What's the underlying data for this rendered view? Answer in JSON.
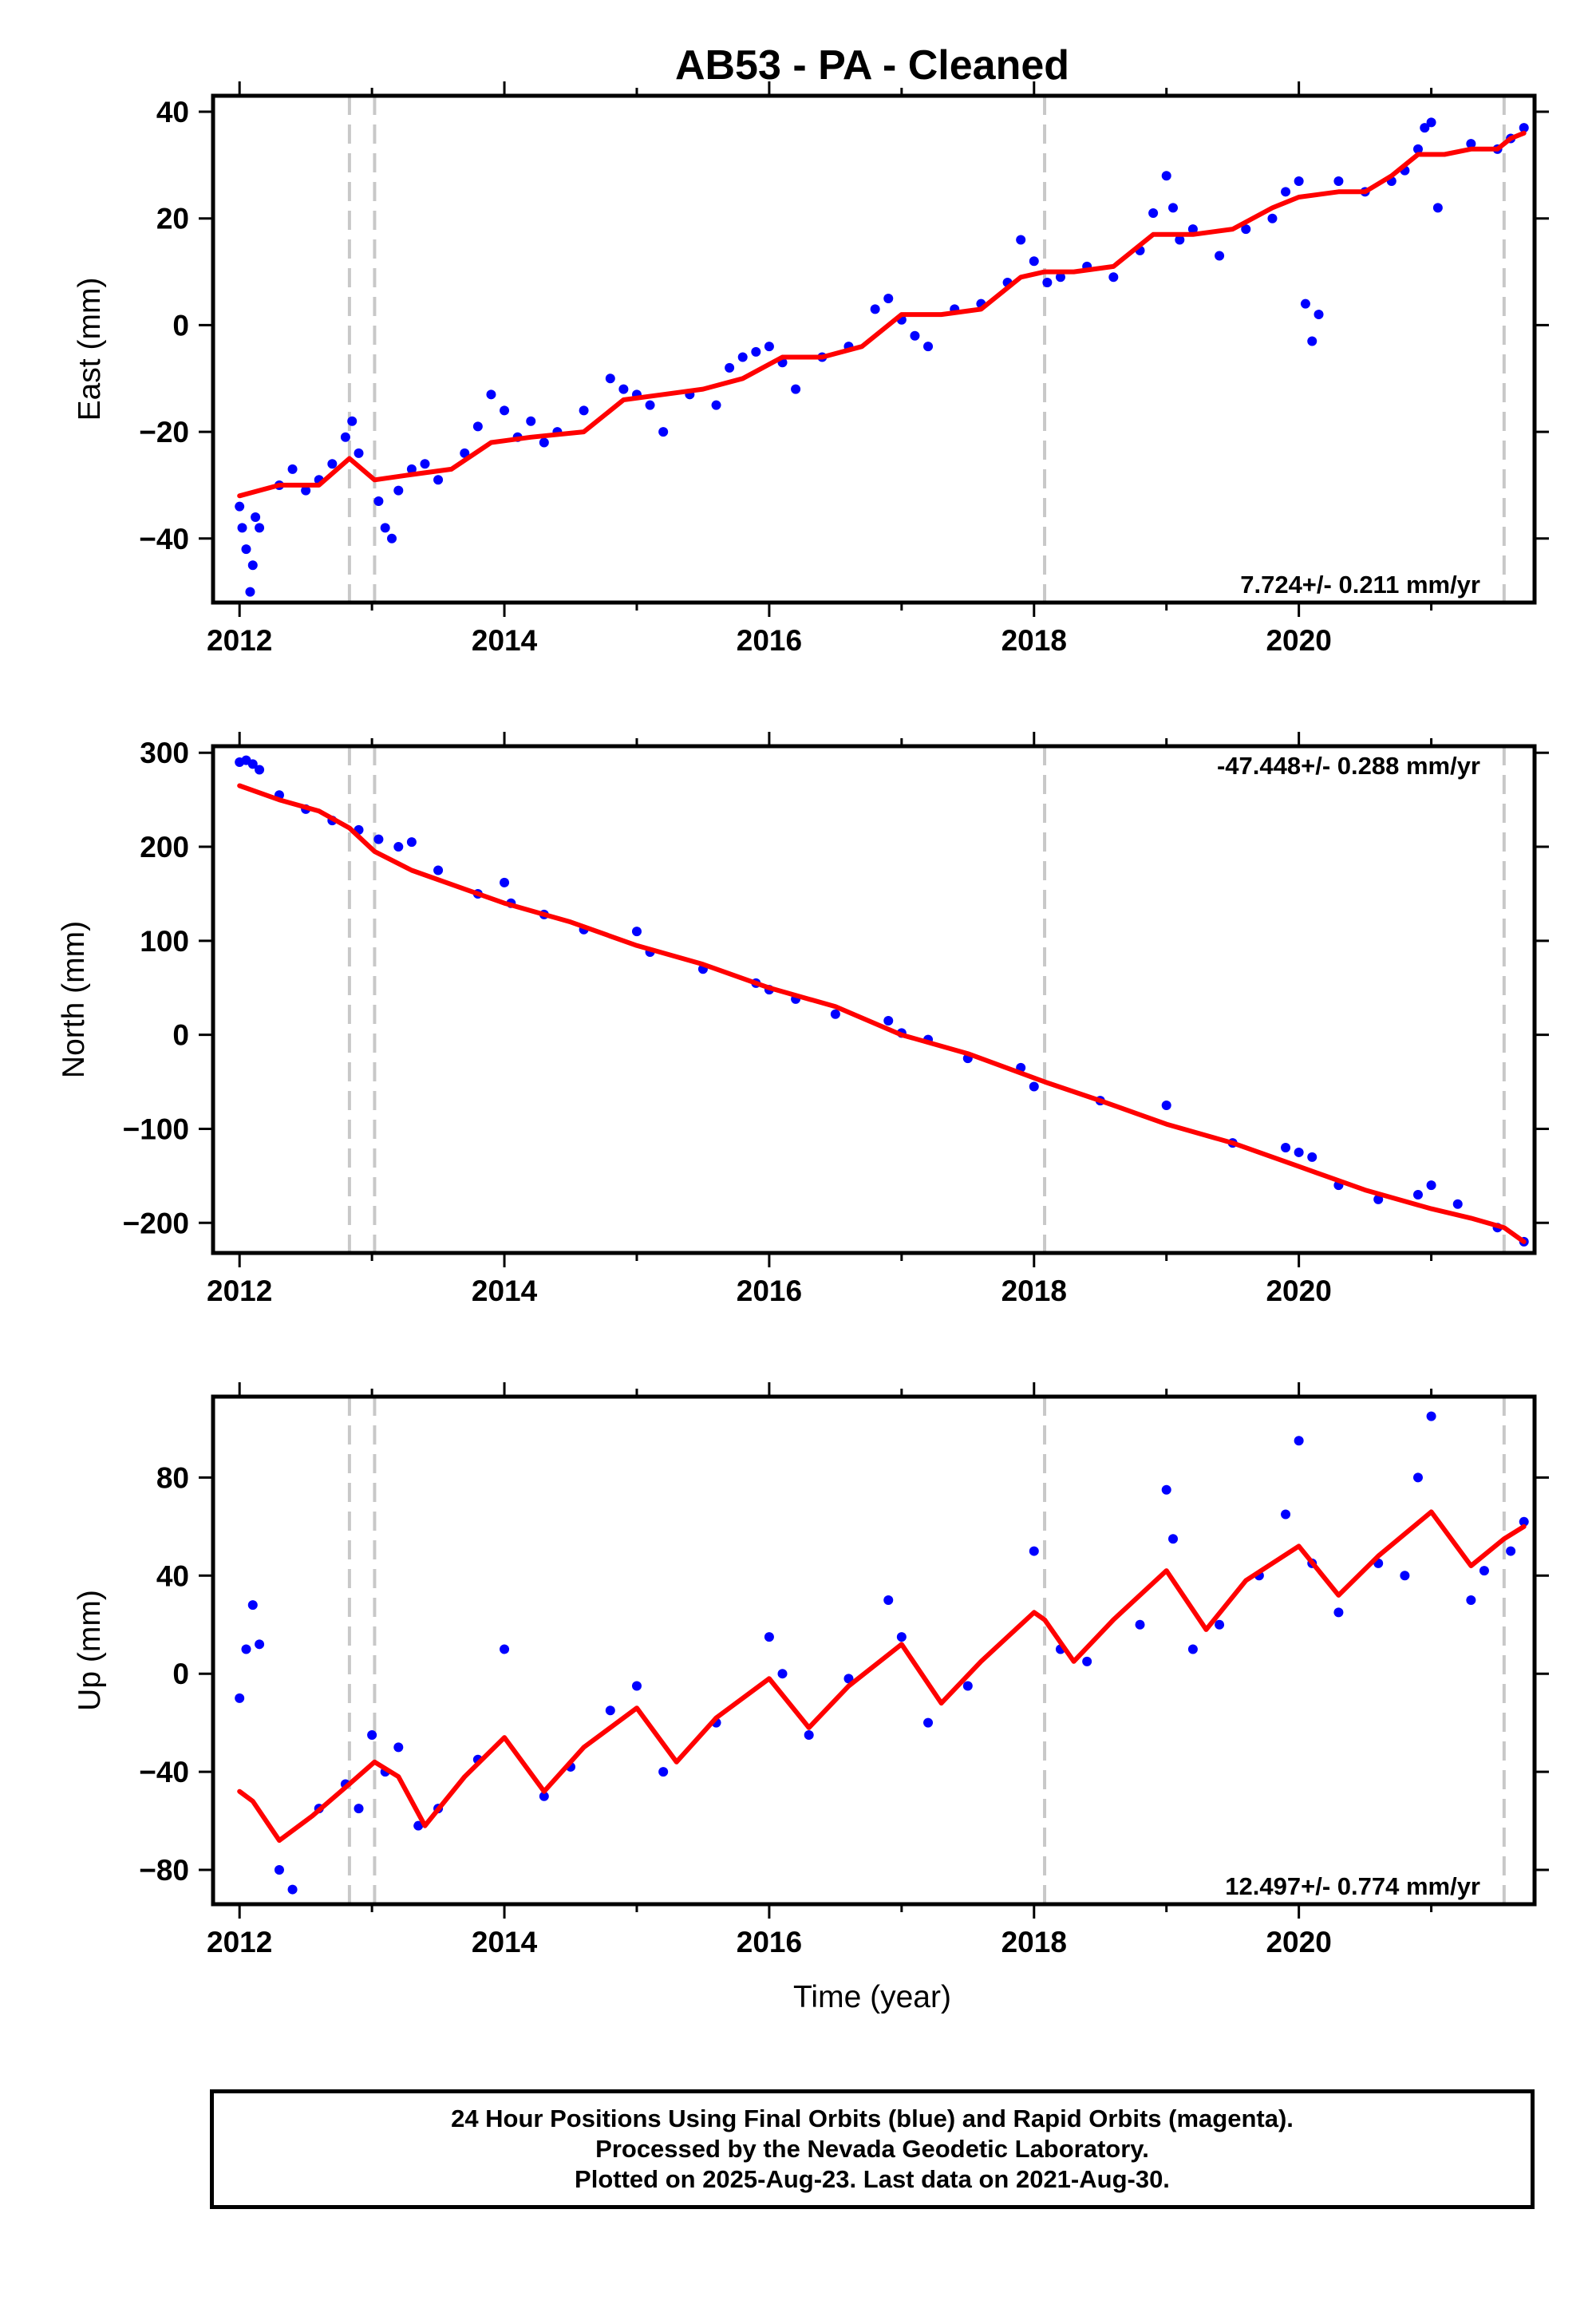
{
  "title": "AB53  - PA - Cleaned",
  "xlabel": "Time (year)",
  "footer": {
    "line1": "24 Hour Positions Using Final Orbits (blue) and Rapid Orbits (magenta).",
    "line2": "Processed by the Nevada Geodetic Laboratory.",
    "line3": "Plotted on 2025-Aug-23. Last data on 2021-Aug-30."
  },
  "colors": {
    "data": "#0000ff",
    "model": "#ff0000",
    "steps": "#c8c8c8",
    "frame": "#000000"
  },
  "chart_data": [
    {
      "type": "scatter",
      "ylabel": "East (mm)",
      "rate_text": "7.724+/- 0.211 mm/yr",
      "rate_position": "bottom-right",
      "xlim": [
        2011.8,
        2021.78
      ],
      "ylim": [
        -52,
        43
      ],
      "xticks": [
        2012,
        2014,
        2016,
        2018,
        2020
      ],
      "yticks": [
        -40,
        -20,
        0,
        20,
        40
      ],
      "step_lines": [
        2012.83,
        2013.02,
        2018.08,
        2021.55
      ],
      "model": {
        "x": [
          2012.0,
          2012.3,
          2012.6,
          2012.83,
          2013.02,
          2013.3,
          2013.6,
          2013.9,
          2014.2,
          2014.6,
          2014.9,
          2015.2,
          2015.5,
          2015.8,
          2016.1,
          2016.4,
          2016.7,
          2017.0,
          2017.3,
          2017.6,
          2017.9,
          2018.08,
          2018.3,
          2018.6,
          2018.9,
          2019.2,
          2019.5,
          2019.8,
          2020.0,
          2020.3,
          2020.5,
          2020.7,
          2020.9,
          2021.1,
          2021.3,
          2021.5,
          2021.6,
          2021.7
        ],
        "y": [
          -32,
          -30,
          -30,
          -25,
          -29,
          -28,
          -27,
          -22,
          -21,
          -20,
          -14,
          -13,
          -12,
          -10,
          -6,
          -6,
          -4,
          2,
          2,
          3,
          9,
          10,
          10,
          11,
          17,
          17,
          18,
          22,
          24,
          25,
          25,
          28,
          32,
          32,
          33,
          33,
          35,
          36
        ]
      },
      "observations": {
        "x": [
          2012.0,
          2012.02,
          2012.05,
          2012.08,
          2012.1,
          2012.12,
          2012.15,
          2012.3,
          2012.4,
          2012.5,
          2012.6,
          2012.7,
          2012.8,
          2012.85,
          2012.9,
          2013.05,
          2013.1,
          2013.15,
          2013.2,
          2013.3,
          2013.4,
          2013.5,
          2013.7,
          2013.8,
          2013.9,
          2014.0,
          2014.1,
          2014.2,
          2014.3,
          2014.4,
          2014.6,
          2014.8,
          2014.9,
          2015.0,
          2015.1,
          2015.2,
          2015.4,
          2015.6,
          2015.7,
          2015.8,
          2015.9,
          2016.0,
          2016.1,
          2016.2,
          2016.4,
          2016.6,
          2016.8,
          2016.9,
          2017.0,
          2017.1,
          2017.2,
          2017.4,
          2017.6,
          2017.8,
          2017.9,
          2018.0,
          2018.1,
          2018.2,
          2018.4,
          2018.6,
          2018.8,
          2018.9,
          2019.0,
          2019.05,
          2019.1,
          2019.2,
          2019.4,
          2019.6,
          2019.8,
          2019.9,
          2020.0,
          2020.05,
          2020.1,
          2020.15,
          2020.3,
          2020.5,
          2020.7,
          2020.8,
          2020.9,
          2020.95,
          2021.0,
          2021.05,
          2021.3,
          2021.5,
          2021.6,
          2021.7
        ],
        "y": [
          -34,
          -38,
          -42,
          -50,
          -45,
          -36,
          -38,
          -30,
          -27,
          -31,
          -29,
          -26,
          -21,
          -18,
          -24,
          -33,
          -38,
          -40,
          -31,
          -27,
          -26,
          -29,
          -24,
          -19,
          -13,
          -16,
          -21,
          -18,
          -22,
          -20,
          -16,
          -10,
          -12,
          -13,
          -15,
          -20,
          -13,
          -15,
          -8,
          -6,
          -5,
          -4,
          -7,
          -12,
          -6,
          -4,
          3,
          5,
          1,
          -2,
          -4,
          3,
          4,
          8,
          16,
          12,
          8,
          9,
          11,
          9,
          14,
          21,
          28,
          22,
          16,
          18,
          13,
          18,
          20,
          25,
          27,
          4,
          -3,
          2,
          27,
          25,
          27,
          29,
          33,
          37,
          38,
          22,
          34,
          33,
          35,
          37
        ]
      }
    },
    {
      "type": "scatter",
      "ylabel": "North (mm)",
      "rate_text": "-47.448+/- 0.288 mm/yr",
      "rate_position": "top-right",
      "xlim": [
        2011.8,
        2021.78
      ],
      "ylim": [
        -232,
        307
      ],
      "xticks": [
        2012,
        2014,
        2016,
        2018,
        2020
      ],
      "yticks": [
        -200,
        -100,
        0,
        100,
        200,
        300
      ],
      "step_lines": [
        2012.83,
        2013.02,
        2018.08,
        2021.55
      ],
      "model": {
        "x": [
          2012.0,
          2012.3,
          2012.6,
          2012.83,
          2013.02,
          2013.3,
          2013.7,
          2014.0,
          2014.5,
          2015.0,
          2015.5,
          2016.0,
          2016.5,
          2017.0,
          2017.5,
          2018.08,
          2018.5,
          2019.0,
          2019.5,
          2020.0,
          2020.5,
          2021.0,
          2021.3,
          2021.55,
          2021.7
        ],
        "y": [
          265,
          250,
          238,
          220,
          195,
          175,
          155,
          140,
          120,
          95,
          75,
          50,
          30,
          0,
          -20,
          -50,
          -70,
          -95,
          -115,
          -140,
          -165,
          -185,
          -195,
          -205,
          -220
        ]
      },
      "observations": {
        "x": [
          2012.0,
          2012.05,
          2012.1,
          2012.15,
          2012.3,
          2012.5,
          2012.7,
          2012.9,
          2013.05,
          2013.2,
          2013.3,
          2013.5,
          2013.8,
          2014.0,
          2014.05,
          2014.3,
          2014.6,
          2015.0,
          2015.1,
          2015.5,
          2015.9,
          2016.0,
          2016.2,
          2016.5,
          2016.9,
          2017.0,
          2017.2,
          2017.5,
          2017.9,
          2018.0,
          2018.5,
          2019.0,
          2019.5,
          2019.9,
          2020.0,
          2020.1,
          2020.3,
          2020.6,
          2020.9,
          2021.0,
          2021.2,
          2021.5,
          2021.7
        ],
        "y": [
          290,
          292,
          288,
          282,
          255,
          240,
          228,
          218,
          208,
          200,
          205,
          175,
          150,
          162,
          140,
          128,
          112,
          110,
          88,
          70,
          55,
          48,
          38,
          22,
          15,
          2,
          -5,
          -25,
          -35,
          -55,
          -70,
          -75,
          -115,
          -120,
          -125,
          -130,
          -160,
          -175,
          -170,
          -160,
          -180,
          -205,
          -220
        ]
      }
    },
    {
      "type": "scatter",
      "ylabel": "Up (mm)",
      "rate_text": "12.497+/- 0.774 mm/yr",
      "rate_position": "bottom-right",
      "xlim": [
        2011.8,
        2021.78
      ],
      "ylim": [
        -94,
        113
      ],
      "xticks": [
        2012,
        2014,
        2016,
        2018,
        2020
      ],
      "yticks": [
        -80,
        -40,
        0,
        40,
        80
      ],
      "step_lines": [
        2012.83,
        2013.02,
        2018.08,
        2021.55
      ],
      "model": {
        "x": [
          2012.0,
          2012.1,
          2012.3,
          2012.55,
          2012.83,
          2013.02,
          2013.2,
          2013.4,
          2013.7,
          2014.0,
          2014.3,
          2014.6,
          2015.0,
          2015.3,
          2015.6,
          2016.0,
          2016.3,
          2016.6,
          2017.0,
          2017.3,
          2017.6,
          2018.0,
          2018.08,
          2018.3,
          2018.6,
          2019.0,
          2019.3,
          2019.6,
          2020.0,
          2020.3,
          2020.6,
          2021.0,
          2021.3,
          2021.55,
          2021.7
        ],
        "y": [
          -48,
          -52,
          -68,
          -58,
          -45,
          -36,
          -42,
          -62,
          -42,
          -26,
          -48,
          -30,
          -14,
          -36,
          -18,
          -2,
          -22,
          -5,
          12,
          -12,
          5,
          25,
          22,
          5,
          22,
          42,
          18,
          38,
          52,
          32,
          48,
          66,
          44,
          55,
          60
        ]
      },
      "observations": {
        "x": [
          2012.0,
          2012.05,
          2012.1,
          2012.15,
          2012.3,
          2012.4,
          2012.6,
          2012.8,
          2012.9,
          2013.0,
          2013.1,
          2013.2,
          2013.35,
          2013.5,
          2013.8,
          2014.0,
          2014.3,
          2014.5,
          2014.8,
          2015.0,
          2015.2,
          2015.6,
          2016.0,
          2016.1,
          2016.3,
          2016.6,
          2016.9,
          2017.0,
          2017.2,
          2017.5,
          2018.0,
          2018.2,
          2018.4,
          2018.8,
          2019.0,
          2019.05,
          2019.2,
          2019.4,
          2019.7,
          2019.9,
          2020.0,
          2020.1,
          2020.3,
          2020.6,
          2020.8,
          2020.9,
          2021.0,
          2021.3,
          2021.4,
          2021.6,
          2021.7
        ],
        "y": [
          -10,
          10,
          28,
          12,
          -80,
          -88,
          -55,
          -45,
          -55,
          -25,
          -40,
          -30,
          -62,
          -55,
          -35,
          10,
          -50,
          -38,
          -15,
          -5,
          -40,
          -20,
          15,
          0,
          -25,
          -2,
          30,
          15,
          -20,
          -5,
          50,
          10,
          5,
          20,
          75,
          55,
          10,
          20,
          40,
          65,
          95,
          45,
          25,
          45,
          40,
          80,
          105,
          30,
          42,
          50,
          62
        ]
      }
    }
  ]
}
